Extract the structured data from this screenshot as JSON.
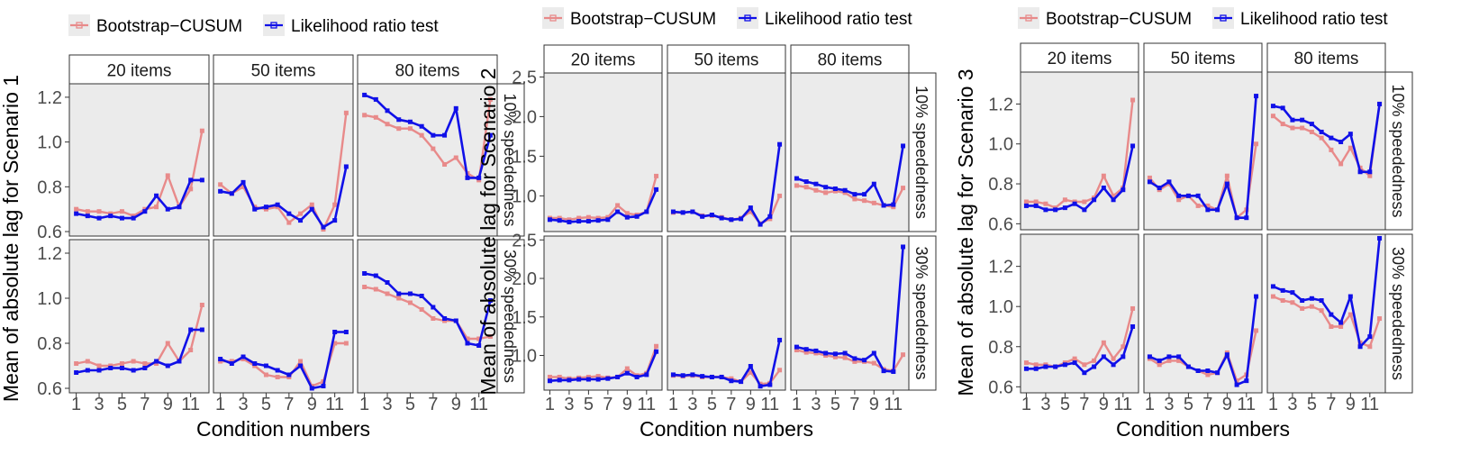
{
  "colors": {
    "bootstrap": "#e88a8a",
    "lrt": "#1010e8",
    "panel_bg": "#ebebeb",
    "strip_bg": "#ffffff",
    "axis_text": "#4d4d4d"
  },
  "legend": {
    "bootstrap_label": "Bootstrap−CUSUM",
    "lrt_label": "Likelihood ratio test"
  },
  "facet_columns": [
    "20 items",
    "50 items",
    "80 items"
  ],
  "facet_rows": [
    "10% speededness",
    "30% speededness"
  ],
  "x_axis_title": "Condition numbers",
  "x_tick_labels": [
    "1",
    "3",
    "5",
    "7",
    "9",
    "11"
  ],
  "chart_data": [
    {
      "type": "line",
      "title": "",
      "ylabel": "Mean of absolute lag for Scenario 1",
      "xlabel": "Condition numbers",
      "x": [
        1,
        2,
        3,
        4,
        5,
        6,
        7,
        8,
        9,
        10,
        11,
        12
      ],
      "xlim": [
        0.4,
        12.6
      ],
      "ylim": [
        0.58,
        1.26
      ],
      "yticks": [
        0.6,
        0.8,
        1.0,
        1.2
      ],
      "ytick_labels": [
        "0.6",
        "0.8",
        "1.0",
        "1.2"
      ],
      "legend_position": "top",
      "grid": false,
      "panels": [
        {
          "row": 0,
          "col": 0,
          "series": [
            {
              "name": "Bootstrap−CUSUM",
              "values": [
                0.7,
                0.69,
                0.69,
                0.68,
                0.69,
                0.67,
                0.7,
                0.71,
                0.85,
                0.71,
                0.79,
                1.05
              ]
            },
            {
              "name": "Likelihood ratio test",
              "values": [
                0.68,
                0.67,
                0.66,
                0.67,
                0.66,
                0.66,
                0.69,
                0.76,
                0.7,
                0.71,
                0.83,
                0.83
              ]
            }
          ]
        },
        {
          "row": 0,
          "col": 1,
          "series": [
            {
              "name": "Bootstrap−CUSUM",
              "values": [
                0.81,
                0.77,
                0.8,
                0.71,
                0.7,
                0.71,
                0.64,
                0.68,
                0.72,
                0.61,
                0.72,
                1.13
              ]
            },
            {
              "name": "Likelihood ratio test",
              "values": [
                0.78,
                0.77,
                0.82,
                0.7,
                0.71,
                0.72,
                0.68,
                0.65,
                0.7,
                0.62,
                0.65,
                0.89
              ]
            }
          ]
        },
        {
          "row": 0,
          "col": 2,
          "series": [
            {
              "name": "Bootstrap−CUSUM",
              "values": [
                1.12,
                1.11,
                1.08,
                1.06,
                1.06,
                1.03,
                0.97,
                0.9,
                0.93,
                0.86,
                0.83,
                1.19
              ]
            },
            {
              "name": "Likelihood ratio test",
              "values": [
                1.21,
                1.19,
                1.14,
                1.1,
                1.09,
                1.07,
                1.03,
                1.03,
                1.15,
                0.84,
                0.84,
                1.03
              ]
            }
          ]
        },
        {
          "row": 1,
          "col": 0,
          "series": [
            {
              "name": "Bootstrap−CUSUM",
              "values": [
                0.71,
                0.72,
                0.7,
                0.7,
                0.71,
                0.72,
                0.71,
                0.71,
                0.8,
                0.72,
                0.77,
                0.97
              ]
            },
            {
              "name": "Likelihood ratio test",
              "values": [
                0.67,
                0.68,
                0.68,
                0.69,
                0.69,
                0.68,
                0.69,
                0.72,
                0.7,
                0.72,
                0.86,
                0.86
              ]
            }
          ]
        },
        {
          "row": 1,
          "col": 1,
          "series": [
            {
              "name": "Bootstrap−CUSUM",
              "values": [
                0.72,
                0.72,
                0.73,
                0.7,
                0.66,
                0.65,
                0.65,
                0.72,
                0.61,
                0.63,
                0.8,
                0.8
              ]
            },
            {
              "name": "Likelihood ratio test",
              "values": [
                0.73,
                0.71,
                0.74,
                0.71,
                0.7,
                0.68,
                0.66,
                0.7,
                0.6,
                0.61,
                0.85,
                0.85
              ]
            }
          ]
        },
        {
          "row": 1,
          "col": 2,
          "series": [
            {
              "name": "Bootstrap−CUSUM",
              "values": [
                1.05,
                1.04,
                1.02,
                1.0,
                0.98,
                0.95,
                0.91,
                0.9,
                0.9,
                0.82,
                0.82,
                0.83
              ]
            },
            {
              "name": "Likelihood ratio test",
              "values": [
                1.11,
                1.1,
                1.07,
                1.02,
                1.02,
                1.01,
                0.96,
                0.91,
                0.9,
                0.8,
                0.79,
                0.99
              ]
            }
          ]
        }
      ]
    },
    {
      "type": "line",
      "title": "",
      "ylabel": "Mean of absolute lag for Scenario 2",
      "xlabel": "Condition numbers",
      "x": [
        1,
        2,
        3,
        4,
        5,
        6,
        7,
        8,
        9,
        10,
        11,
        12
      ],
      "xlim": [
        0.4,
        12.6
      ],
      "ylim": [
        0.55,
        2.55
      ],
      "yticks": [
        1.0,
        1.5,
        2.0,
        2.5
      ],
      "ytick_labels": [
        "1.0",
        "1.5",
        "2.0",
        "2.5"
      ],
      "legend_position": "top",
      "grid": false,
      "panels": [
        {
          "row": 0,
          "col": 0,
          "series": [
            {
              "name": "Bootstrap−CUSUM",
              "values": [
                0.72,
                0.72,
                0.7,
                0.72,
                0.73,
                0.72,
                0.73,
                0.88,
                0.78,
                0.76,
                0.8,
                1.25
              ]
            },
            {
              "name": "Likelihood ratio test",
              "values": [
                0.7,
                0.69,
                0.67,
                0.68,
                0.68,
                0.69,
                0.7,
                0.8,
                0.73,
                0.74,
                0.8,
                1.08
              ]
            }
          ]
        },
        {
          "row": 0,
          "col": 1,
          "series": [
            {
              "name": "Bootstrap−CUSUM",
              "values": [
                0.79,
                0.79,
                0.8,
                0.75,
                0.75,
                0.73,
                0.7,
                0.72,
                0.8,
                0.65,
                0.71,
                1.0
              ]
            },
            {
              "name": "Likelihood ratio test",
              "values": [
                0.8,
                0.79,
                0.8,
                0.74,
                0.76,
                0.72,
                0.7,
                0.71,
                0.85,
                0.64,
                0.74,
                1.65
              ]
            }
          ]
        },
        {
          "row": 0,
          "col": 2,
          "series": [
            {
              "name": "Bootstrap−CUSUM",
              "values": [
                1.13,
                1.11,
                1.07,
                1.04,
                1.06,
                1.04,
                0.96,
                0.94,
                0.91,
                0.88,
                0.86,
                1.1
              ]
            },
            {
              "name": "Likelihood ratio test",
              "values": [
                1.22,
                1.18,
                1.15,
                1.11,
                1.09,
                1.07,
                1.02,
                1.02,
                1.15,
                0.88,
                0.89,
                1.63
              ]
            }
          ]
        },
        {
          "row": 1,
          "col": 0,
          "series": [
            {
              "name": "Bootstrap−CUSUM",
              "values": [
                0.72,
                0.72,
                0.7,
                0.71,
                0.72,
                0.73,
                0.71,
                0.72,
                0.83,
                0.74,
                0.77,
                1.12
              ]
            },
            {
              "name": "Likelihood ratio test",
              "values": [
                0.67,
                0.68,
                0.68,
                0.69,
                0.69,
                0.69,
                0.7,
                0.72,
                0.77,
                0.72,
                0.75,
                1.05
              ]
            }
          ]
        },
        {
          "row": 1,
          "col": 1,
          "series": [
            {
              "name": "Bootstrap−CUSUM",
              "values": [
                0.74,
                0.73,
                0.74,
                0.72,
                0.72,
                0.72,
                0.7,
                0.66,
                0.78,
                0.63,
                0.64,
                0.81
              ]
            },
            {
              "name": "Likelihood ratio test",
              "values": [
                0.75,
                0.74,
                0.75,
                0.73,
                0.72,
                0.72,
                0.67,
                0.66,
                0.86,
                0.6,
                0.62,
                1.2
              ]
            }
          ]
        },
        {
          "row": 1,
          "col": 2,
          "series": [
            {
              "name": "Bootstrap−CUSUM",
              "values": [
                1.07,
                1.04,
                1.03,
                1.0,
                0.98,
                0.97,
                0.92,
                0.92,
                0.9,
                0.82,
                0.8,
                1.01
              ]
            },
            {
              "name": "Likelihood ratio test",
              "values": [
                1.11,
                1.08,
                1.06,
                1.03,
                1.02,
                1.03,
                0.96,
                0.94,
                1.03,
                0.8,
                0.79,
                2.41
              ]
            }
          ]
        }
      ]
    },
    {
      "type": "line",
      "title": "",
      "ylabel": "Mean of absolute lag for Scenario 3",
      "xlabel": "Condition numbers",
      "x": [
        1,
        2,
        3,
        4,
        5,
        6,
        7,
        8,
        9,
        10,
        11,
        12
      ],
      "xlim": [
        0.4,
        12.6
      ],
      "ylim": [
        0.57,
        1.36
      ],
      "yticks": [
        0.6,
        0.8,
        1.0,
        1.2
      ],
      "ytick_labels": [
        "0.6",
        "0.8",
        "1.0",
        "1.2"
      ],
      "legend_position": "top",
      "grid": false,
      "panels": [
        {
          "row": 0,
          "col": 0,
          "series": [
            {
              "name": "Bootstrap−CUSUM",
              "values": [
                0.71,
                0.71,
                0.7,
                0.68,
                0.72,
                0.71,
                0.71,
                0.73,
                0.84,
                0.74,
                0.78,
                1.22
              ]
            },
            {
              "name": "Likelihood ratio test",
              "values": [
                0.69,
                0.69,
                0.67,
                0.67,
                0.68,
                0.7,
                0.67,
                0.72,
                0.78,
                0.72,
                0.77,
                0.99
              ]
            }
          ]
        },
        {
          "row": 0,
          "col": 1,
          "series": [
            {
              "name": "Bootstrap−CUSUM",
              "values": [
                0.83,
                0.77,
                0.8,
                0.72,
                0.74,
                0.69,
                0.69,
                0.67,
                0.84,
                0.63,
                0.67,
                1.0
              ]
            },
            {
              "name": "Likelihood ratio test",
              "values": [
                0.81,
                0.78,
                0.81,
                0.74,
                0.74,
                0.74,
                0.67,
                0.67,
                0.8,
                0.63,
                0.63,
                1.24
              ]
            }
          ]
        },
        {
          "row": 0,
          "col": 2,
          "series": [
            {
              "name": "Bootstrap−CUSUM",
              "values": [
                1.14,
                1.1,
                1.08,
                1.08,
                1.06,
                1.03,
                0.97,
                0.9,
                0.98,
                0.88,
                0.84,
                1.2
              ]
            },
            {
              "name": "Likelihood ratio test",
              "values": [
                1.19,
                1.18,
                1.12,
                1.12,
                1.1,
                1.06,
                1.03,
                1.01,
                1.05,
                0.86,
                0.86,
                1.2
              ]
            }
          ]
        },
        {
          "row": 1,
          "col": 0,
          "series": [
            {
              "name": "Bootstrap−CUSUM",
              "values": [
                0.72,
                0.71,
                0.71,
                0.7,
                0.72,
                0.74,
                0.71,
                0.73,
                0.82,
                0.74,
                0.8,
                0.99
              ]
            },
            {
              "name": "Likelihood ratio test",
              "values": [
                0.69,
                0.69,
                0.7,
                0.7,
                0.71,
                0.72,
                0.67,
                0.7,
                0.75,
                0.71,
                0.75,
                0.9
              ]
            }
          ]
        },
        {
          "row": 1,
          "col": 1,
          "series": [
            {
              "name": "Bootstrap−CUSUM",
              "values": [
                0.74,
                0.71,
                0.73,
                0.73,
                0.7,
                0.68,
                0.66,
                0.67,
                0.77,
                0.63,
                0.66,
                0.88
              ]
            },
            {
              "name": "Likelihood ratio test",
              "values": [
                0.75,
                0.73,
                0.75,
                0.75,
                0.7,
                0.68,
                0.68,
                0.67,
                0.76,
                0.61,
                0.63,
                1.05
              ]
            }
          ]
        },
        {
          "row": 1,
          "col": 2,
          "series": [
            {
              "name": "Bootstrap−CUSUM",
              "values": [
                1.05,
                1.03,
                1.02,
                0.99,
                1.0,
                0.98,
                0.9,
                0.9,
                0.96,
                0.82,
                0.8,
                0.94
              ]
            },
            {
              "name": "Likelihood ratio test",
              "values": [
                1.1,
                1.08,
                1.07,
                1.03,
                1.04,
                1.03,
                0.96,
                0.92,
                1.05,
                0.8,
                0.85,
                1.34
              ]
            }
          ]
        }
      ]
    }
  ]
}
